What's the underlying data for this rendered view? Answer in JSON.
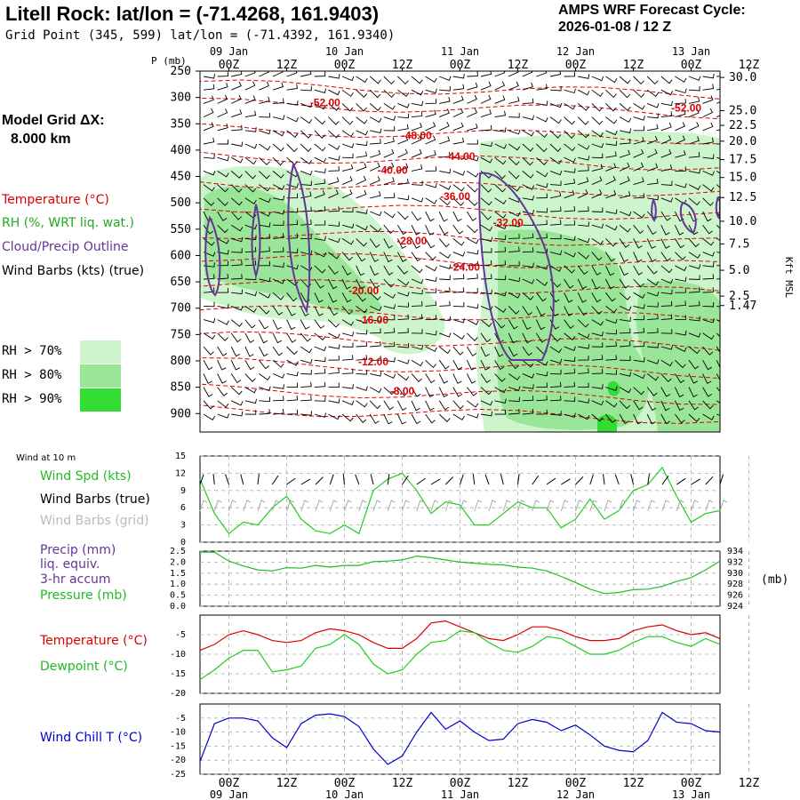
{
  "header": {
    "title": "Litell Rock:  lat/lon = (-71.4268, 161.9403)",
    "subtitle": "Grid Point (345, 599) lat/lon = (-71.4392, 161.9340)",
    "cycle_line1": "AMPS WRF Forecast Cycle:",
    "cycle_line2": "2026-01-08 / 12  Z"
  },
  "left_panel": {
    "grid_label": "Model Grid ΔX:",
    "grid_value": "8.000 km",
    "temperature_legend": "Temperature (°C)",
    "rh_legend": "RH (%, WRT liq. wat.)",
    "cloud_legend": "Cloud/Precip Outline",
    "wind_legend": "Wind Barbs (kts) (true)",
    "rh_levels": [
      {
        "label": "RH > 70%",
        "color": "#ccf5cc"
      },
      {
        "label": "RH > 80%",
        "color": "#99e699"
      },
      {
        "label": "RH > 90%",
        "color": "#33dd33"
      }
    ]
  },
  "colors": {
    "temperature": "#dd0000",
    "rh": "#22cc22",
    "cloud": "#663399",
    "wind": "#000000",
    "wind_grid": "#aaaaaa",
    "pressure": "#22bb22",
    "windchill": "#0000cc",
    "gridline": "#aaaaaa"
  },
  "time_axis": {
    "top_dates": [
      "09 Jan",
      "10 Jan",
      "11 Jan",
      "12 Jan",
      "13 Jan"
    ],
    "bottom_dates": [
      "09 Jan",
      "10 Jan",
      "11 Jan",
      "12 Jan",
      "13 Jan"
    ],
    "hours": [
      "00Z",
      "12Z",
      "00Z",
      "12Z",
      "00Z",
      "12Z",
      "00Z",
      "12Z",
      "00Z",
      "12Z"
    ],
    "x_range_hours": [
      0,
      108
    ]
  },
  "chart_data": [
    {
      "type": "heatmap",
      "panel": "cross-section",
      "ylabel_left": "P (mb)",
      "ylabel_right": "Kft MSL",
      "p_ticks": [
        250,
        300,
        350,
        400,
        450,
        500,
        550,
        600,
        650,
        700,
        750,
        800,
        850,
        900
      ],
      "kft_ticks": [
        "30.0",
        "25.0",
        "22.5",
        "20.0",
        "17.5",
        "15.0",
        "12.5",
        "10.0",
        "7.5",
        "5.0",
        "2.5",
        "1.47"
      ],
      "kft_tick_pressures": [
        262,
        325,
        353,
        383,
        418,
        452,
        490,
        535,
        578,
        628,
        677,
        695
      ],
      "ylim_mb": [
        250,
        935
      ],
      "temperature_contours": [
        {
          "label": "-52.00",
          "at": [
            26,
            310
          ]
        },
        {
          "label": "-52.00",
          "at": [
            101,
            320
          ]
        },
        {
          "label": "-48.00",
          "at": [
            45,
            372
          ]
        },
        {
          "label": "-44.00",
          "at": [
            54,
            412
          ]
        },
        {
          "label": "-40.00",
          "at": [
            40,
            438
          ]
        },
        {
          "label": "-36.00",
          "at": [
            53,
            488
          ]
        },
        {
          "label": "-32.00",
          "at": [
            64,
            538
          ]
        },
        {
          "label": "-28.00",
          "at": [
            44,
            572
          ]
        },
        {
          "label": "-24.00",
          "at": [
            55,
            622
          ]
        },
        {
          "label": "-20.00",
          "at": [
            34,
            667
          ]
        },
        {
          "label": "-16.00",
          "at": [
            36,
            722
          ]
        },
        {
          "label": "-12.00",
          "at": [
            36,
            802
          ]
        },
        {
          "label": "-8.00",
          "at": [
            42,
            857
          ]
        }
      ]
    },
    {
      "type": "line",
      "panel": "wind",
      "title": "Wind at 10 m",
      "series_labels": [
        "Wind Spd (kts)",
        "Wind Barbs (true)",
        "Wind Barbs (grid)"
      ],
      "y_ticks": [
        0,
        3,
        6,
        9,
        12,
        15
      ],
      "ylim": [
        0,
        15
      ],
      "x_hours": [
        0,
        3,
        6,
        9,
        12,
        15,
        18,
        21,
        24,
        27,
        30,
        33,
        36,
        39,
        42,
        45,
        48,
        51,
        54,
        57,
        60,
        63,
        66,
        69,
        72,
        75,
        78,
        81,
        84,
        87,
        90,
        93,
        96,
        99,
        102,
        105,
        108
      ],
      "series": [
        {
          "name": "Wind Spd (kts)",
          "values": [
            11,
            5,
            1.5,
            3.5,
            3,
            6,
            8,
            4,
            2,
            1.5,
            3,
            1.5,
            9,
            11,
            12,
            9,
            5,
            7,
            6.5,
            3,
            3,
            5,
            7,
            6,
            6,
            2.5,
            4,
            7.5,
            4,
            5.5,
            9,
            10,
            13,
            8,
            3.5,
            5,
            5.5
          ]
        }
      ]
    },
    {
      "type": "line",
      "panel": "pressure",
      "series_labels": [
        "Precip (mm)",
        "liq. equiv.",
        "3-hr accum",
        "Pressure (mb)"
      ],
      "y_ticks_left": [
        "0.0",
        "0.5",
        "1.0",
        "1.5",
        "2.0",
        "2.5"
      ],
      "ylim_left": [
        0,
        2.5
      ],
      "y_ticks_right": [
        924,
        926,
        928,
        930,
        932,
        934
      ],
      "ylim_right": [
        924,
        934
      ],
      "right_unit": "(mb)",
      "x_hours": [
        0,
        3,
        6,
        9,
        12,
        15,
        18,
        21,
        24,
        27,
        30,
        33,
        36,
        39,
        42,
        45,
        48,
        51,
        54,
        57,
        60,
        63,
        66,
        69,
        72,
        75,
        78,
        81,
        84,
        87,
        90,
        93,
        96,
        99,
        102,
        105,
        108
      ],
      "series": [
        {
          "name": "Pressure (mb)",
          "values": [
            933.8,
            933.8,
            932.2,
            931.3,
            930.6,
            930.4,
            931.0,
            930.9,
            931.4,
            931.1,
            931.4,
            931.4,
            932.1,
            932.2,
            932.4,
            933.1,
            932.8,
            932.4,
            932.0,
            931.8,
            931.6,
            931.5,
            931.1,
            930.9,
            930.4,
            929.4,
            928.3,
            927.1,
            926.3,
            926.5,
            927.0,
            927.1,
            927.6,
            928.5,
            929.2,
            930.6,
            932.2
          ]
        }
      ]
    },
    {
      "type": "line",
      "panel": "temperature",
      "series_labels": [
        "Temperature (°C)",
        "Dewpoint (°C)"
      ],
      "y_ticks": [
        -20,
        -15,
        -10,
        -5
      ],
      "ylim": [
        -20,
        0
      ],
      "x_hours": [
        0,
        3,
        6,
        9,
        12,
        15,
        18,
        21,
        24,
        27,
        30,
        33,
        36,
        39,
        42,
        45,
        48,
        51,
        54,
        57,
        60,
        63,
        66,
        69,
        72,
        75,
        78,
        81,
        84,
        87,
        90,
        93,
        96,
        99,
        102,
        105,
        108
      ],
      "series": [
        {
          "name": "Temperature (°C)",
          "values": [
            -9,
            -7.5,
            -5,
            -4,
            -5,
            -6.5,
            -7,
            -6.5,
            -4.5,
            -3.5,
            -4,
            -5,
            -7,
            -8.5,
            -8.5,
            -6,
            -2,
            -1.5,
            -3,
            -4.5,
            -6,
            -6.5,
            -5,
            -3,
            -3,
            -4,
            -5.5,
            -6.5,
            -6.5,
            -6,
            -4,
            -3,
            -2.5,
            -4,
            -5,
            -4.5,
            -6
          ]
        },
        {
          "name": "Dewpoint (°C)",
          "values": [
            -16.5,
            -14,
            -11,
            -9,
            -9,
            -14.5,
            -14,
            -13,
            -8.5,
            -7.5,
            -5,
            -7.5,
            -12.5,
            -15,
            -14,
            -10,
            -7,
            -6.5,
            -4,
            -4.5,
            -7,
            -9,
            -9.5,
            -8,
            -5.5,
            -6,
            -8,
            -10,
            -10,
            -9,
            -7,
            -5.5,
            -5.5,
            -7,
            -8,
            -6,
            -7.5
          ]
        }
      ]
    },
    {
      "type": "line",
      "panel": "windchill",
      "series_labels": [
        "Wind Chill T (°C)"
      ],
      "y_ticks": [
        -25,
        -20,
        -15,
        -10,
        -5
      ],
      "ylim": [
        -25,
        0
      ],
      "x_hours": [
        0,
        3,
        6,
        9,
        12,
        15,
        18,
        21,
        24,
        27,
        30,
        33,
        36,
        39,
        42,
        45,
        48,
        51,
        54,
        57,
        60,
        63,
        66,
        69,
        72,
        75,
        78,
        81,
        84,
        87,
        90,
        93,
        96,
        99,
        102,
        105,
        108
      ],
      "series": [
        {
          "name": "Wind Chill T (°C)",
          "values": [
            -20.5,
            -7,
            -5,
            -5,
            -6,
            -12,
            -15.5,
            -7,
            -4,
            -3.5,
            -4.5,
            -8,
            -16,
            -21.5,
            -18.5,
            -10,
            -3,
            -9,
            -6,
            -10,
            -13,
            -12.5,
            -7,
            -5.5,
            -6.5,
            -9.5,
            -7.5,
            -11,
            -15,
            -16.5,
            -17,
            -13,
            -3,
            -6.5,
            -7,
            -9.5,
            -10
          ]
        }
      ]
    }
  ]
}
